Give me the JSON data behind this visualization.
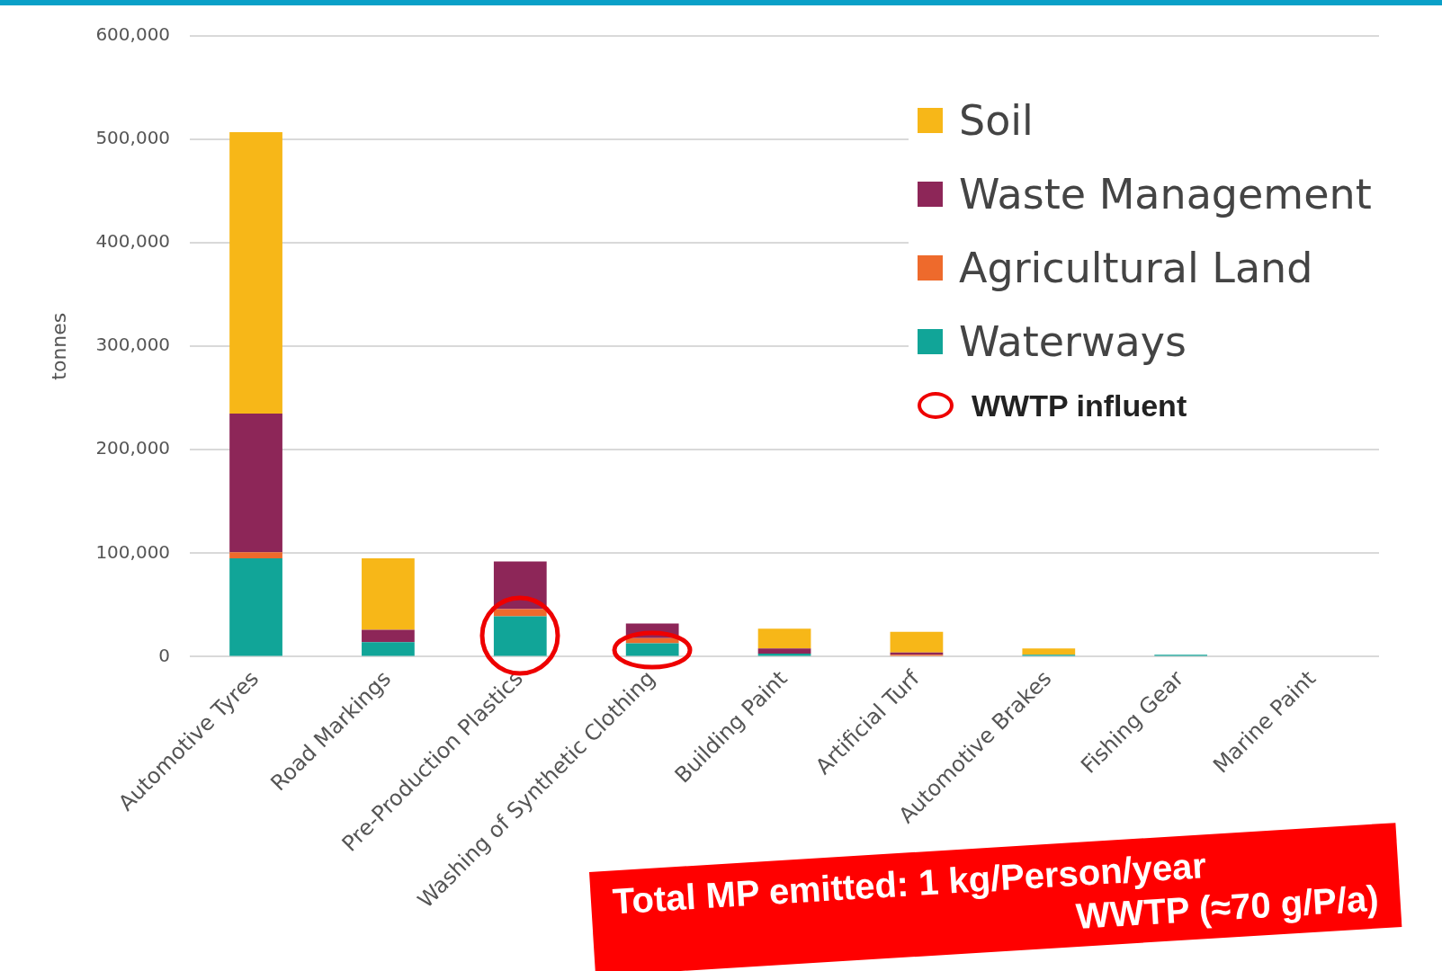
{
  "chart_data": {
    "type": "bar",
    "stacked": true,
    "ylabel": "tonnes",
    "categories": [
      "Automotive Tyres",
      "Road Markings",
      "Pre-Production Plastics",
      "Washing of Synthetic Clothing",
      "Building Paint",
      "Artificial Turf",
      "Automotive Brakes",
      "Fishing Gear",
      "Marine Paint"
    ],
    "series": [
      {
        "name": "Waterways",
        "color": "#11a598",
        "values": [
          95000,
          14000,
          39000,
          13000,
          3000,
          0,
          2000,
          2000,
          0
        ]
      },
      {
        "name": "Agricultural Land",
        "color": "#ee6a2c",
        "values": [
          6000,
          0,
          7000,
          5000,
          0,
          2000,
          0,
          0,
          0
        ]
      },
      {
        "name": "Waste Management",
        "color": "#8d2658",
        "values": [
          134000,
          12000,
          46000,
          14000,
          5000,
          2000,
          0,
          0,
          0
        ]
      },
      {
        "name": "Soil",
        "color": "#f7b718",
        "values": [
          272000,
          69000,
          0,
          0,
          19000,
          20000,
          6000,
          0,
          0
        ]
      }
    ],
    "ylim": [
      0,
      600000
    ],
    "yticks": [
      0,
      {
        "value": 100000,
        "label": "100,000"
      },
      {
        "value": 200000,
        "label": "200,000"
      },
      {
        "value": 300000,
        "label": "300,000"
      },
      {
        "value": 400000,
        "label": "400,000"
      },
      {
        "value": 500000,
        "label": "500,000"
      },
      {
        "value": 600000,
        "label": "600,000"
      }
    ],
    "grid": "y",
    "legend": "top right",
    "annotations": [
      "WWTP influent",
      "Total MP emitted: 1 kg/Person/year",
      "WWTP (≈70 g/P/a)"
    ]
  }
}
